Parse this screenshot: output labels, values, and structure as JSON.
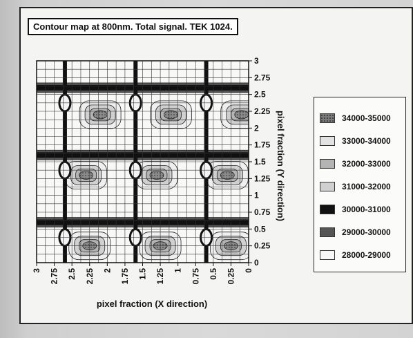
{
  "chart_data": {
    "type": "heatmap",
    "title": "Contour map at 800nm. Total signal. TEK 1024.",
    "xlabel": "pixel fraction (X direction)",
    "ylabel": "pixel fraction (Y direction)",
    "x_ticks": [
      "3",
      "2.75",
      "2.5",
      "2.25",
      "2",
      "1.75",
      "1.5",
      "1.25",
      "1",
      "0.75",
      "0.5",
      "0.25",
      "0"
    ],
    "y_ticks": [
      "0",
      "0.25",
      "0.5",
      "0.75",
      "1",
      "1.25",
      "1.5",
      "1.75",
      "2",
      "2.25",
      "2.5",
      "2.75",
      "3"
    ],
    "xlim": [
      3,
      0
    ],
    "ylim": [
      0,
      3
    ],
    "grid": true,
    "legend_placement": "right",
    "legend": [
      {
        "label": "34000-35000",
        "color": "#7a7a7a",
        "pattern": "dots"
      },
      {
        "label": "33000-34000",
        "color": "#e2e2e2",
        "pattern": "none"
      },
      {
        "label": "32000-33000",
        "color": "#b4b4b4",
        "pattern": "none"
      },
      {
        "label": "31000-32000",
        "color": "#d0d0d0",
        "pattern": "none"
      },
      {
        "label": "30000-31000",
        "color": "#111111",
        "pattern": "none"
      },
      {
        "label": "29000-30000",
        "color": "#555555",
        "pattern": "none"
      },
      {
        "label": "28000-29000",
        "color": "#f7f7f7",
        "pattern": "none"
      }
    ],
    "bands": [
      {
        "y": 0.6,
        "label": "30000-31000"
      },
      {
        "y": 1.6,
        "label": "30000-31000"
      },
      {
        "y": 2.6,
        "label": "30000-31000"
      }
    ],
    "columns": [
      {
        "x": 0.6,
        "label": "30000-31000"
      },
      {
        "x": 1.6,
        "label": "30000-31000"
      },
      {
        "x": 2.6,
        "label": "30000-31000"
      }
    ],
    "peaks": [
      {
        "x": 0.25,
        "y": 0.25,
        "label": "34000-35000"
      },
      {
        "x": 1.25,
        "y": 0.25,
        "label": "34000-35000"
      },
      {
        "x": 2.25,
        "y": 0.25,
        "label": "34000-35000"
      },
      {
        "x": 0.3,
        "y": 1.3,
        "label": "34000-35000"
      },
      {
        "x": 1.3,
        "y": 1.3,
        "label": "34000-35000"
      },
      {
        "x": 2.3,
        "y": 1.3,
        "label": "34000-35000"
      },
      {
        "x": 0.1,
        "y": 2.2,
        "label": "34000-35000"
      },
      {
        "x": 1.1,
        "y": 2.2,
        "label": "34000-35000"
      },
      {
        "x": 2.1,
        "y": 2.2,
        "label": "34000-35000"
      }
    ]
  }
}
